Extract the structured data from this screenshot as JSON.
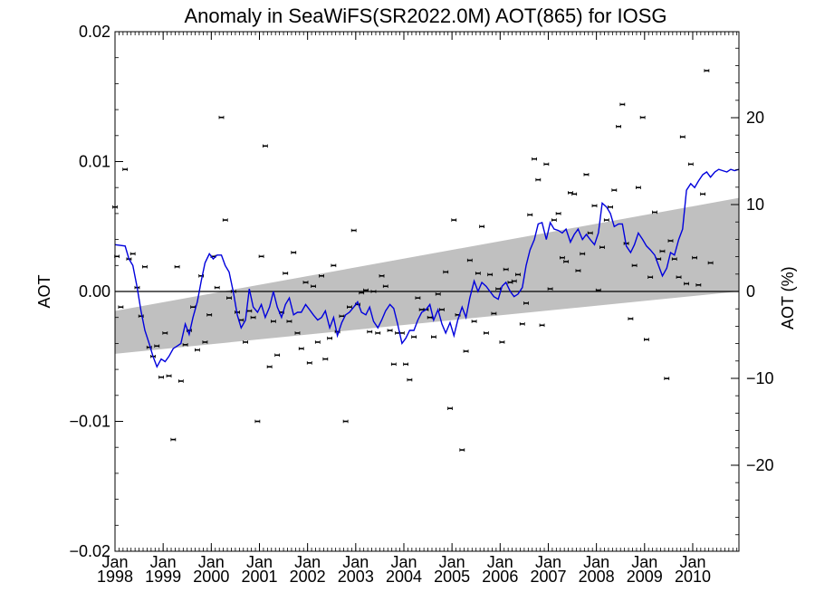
{
  "chart_data": {
    "type": "scatter",
    "title": "Anomaly in SeaWiFS(SR2022.0M) AOT(865) for IOSG",
    "ylabel": "AOT",
    "y2label": "AOT (%)",
    "xlim": [
      1998.0,
      2010.96
    ],
    "ylim": [
      -0.02,
      0.02
    ],
    "y2lim": [
      -29.9,
      29.9
    ],
    "yticks": [
      -0.02,
      -0.01,
      0.0,
      0.01,
      0.02
    ],
    "ytick_labels": [
      "−0.02",
      "−0.01",
      "0.00",
      "0.01",
      "0.02"
    ],
    "y2ticks": [
      -20,
      -10,
      0,
      10,
      20
    ],
    "y2tick_labels": [
      "−20",
      "−10",
      "0",
      "10",
      "20"
    ],
    "xticks": [
      1998,
      1999,
      2000,
      2001,
      2002,
      2003,
      2004,
      2005,
      2006,
      2007,
      2008,
      2009,
      2010
    ],
    "xtick_month": "Jan",
    "xtick_years": [
      "1998",
      "1999",
      "2000",
      "2001",
      "2002",
      "2003",
      "2004",
      "2005",
      "2006",
      "2007",
      "2008",
      "2009",
      "2010"
    ],
    "zero_line": 0.0,
    "trend_band": {
      "x": [
        1998.0,
        2010.96
      ],
      "upper": [
        -0.0015,
        0.0072
      ],
      "lower": [
        -0.0048,
        0.0
      ]
    },
    "colors": {
      "smooth": "#0000dd",
      "band": "#c0c0c0",
      "points": "#000000"
    },
    "points": [
      {
        "x": 1998.0,
        "y": 0.0065
      },
      {
        "x": 1998.04,
        "y": 0.0027
      },
      {
        "x": 1998.12,
        "y": -0.0012
      },
      {
        "x": 1998.21,
        "y": 0.0094
      },
      {
        "x": 1998.29,
        "y": 0.0025
      },
      {
        "x": 1998.37,
        "y": 0.0029
      },
      {
        "x": 1998.46,
        "y": 0.0003
      },
      {
        "x": 1998.54,
        "y": -0.0019
      },
      {
        "x": 1998.62,
        "y": 0.0019
      },
      {
        "x": 1998.71,
        "y": -0.0043
      },
      {
        "x": 1998.79,
        "y": -0.005
      },
      {
        "x": 1998.87,
        "y": -0.0042
      },
      {
        "x": 1998.96,
        "y": -0.0066
      },
      {
        "x": 1999.04,
        "y": -0.0032
      },
      {
        "x": 1999.12,
        "y": -0.0065
      },
      {
        "x": 1999.21,
        "y": -0.0114
      },
      {
        "x": 1999.29,
        "y": 0.0019
      },
      {
        "x": 1999.37,
        "y": -0.0069
      },
      {
        "x": 1999.46,
        "y": -0.0041
      },
      {
        "x": 1999.54,
        "y": -0.003
      },
      {
        "x": 1999.62,
        "y": -0.0012
      },
      {
        "x": 1999.71,
        "y": -0.0045
      },
      {
        "x": 1999.79,
        "y": 0.0012
      },
      {
        "x": 1999.87,
        "y": -0.0039
      },
      {
        "x": 1999.96,
        "y": -0.0018
      },
      {
        "x": 2000.04,
        "y": 0.0027
      },
      {
        "x": 2000.12,
        "y": 0.0003
      },
      {
        "x": 2000.21,
        "y": 0.0134
      },
      {
        "x": 2000.29,
        "y": 0.0055
      },
      {
        "x": 2000.37,
        "y": -0.0005
      },
      {
        "x": 2000.46,
        "y": 0.0
      },
      {
        "x": 2000.54,
        "y": -0.0016
      },
      {
        "x": 2000.62,
        "y": -0.0022
      },
      {
        "x": 2000.71,
        "y": -0.0039
      },
      {
        "x": 2000.79,
        "y": -0.0015
      },
      {
        "x": 2000.87,
        "y": -0.002
      },
      {
        "x": 2000.96,
        "y": -0.01
      },
      {
        "x": 2001.04,
        "y": 0.0027
      },
      {
        "x": 2001.12,
        "y": 0.0112
      },
      {
        "x": 2001.21,
        "y": -0.0058
      },
      {
        "x": 2001.29,
        "y": -0.0023
      },
      {
        "x": 2001.37,
        "y": -0.0049
      },
      {
        "x": 2001.46,
        "y": -0.0016
      },
      {
        "x": 2001.54,
        "y": 0.0014
      },
      {
        "x": 2001.62,
        "y": -0.0023
      },
      {
        "x": 2001.71,
        "y": 0.003
      },
      {
        "x": 2001.79,
        "y": -0.0032
      },
      {
        "x": 2001.87,
        "y": -0.0044
      },
      {
        "x": 2001.96,
        "y": 0.0007
      },
      {
        "x": 2002.04,
        "y": -0.0055
      },
      {
        "x": 2002.12,
        "y": 0.0004
      },
      {
        "x": 2002.21,
        "y": -0.0039
      },
      {
        "x": 2002.29,
        "y": 0.0012
      },
      {
        "x": 2002.37,
        "y": -0.0052
      },
      {
        "x": 2002.46,
        "y": -0.0036
      },
      {
        "x": 2002.54,
        "y": 0.002
      },
      {
        "x": 2002.62,
        "y": -0.0031
      },
      {
        "x": 2002.71,
        "y": -0.0019
      },
      {
        "x": 2002.79,
        "y": -0.01
      },
      {
        "x": 2002.87,
        "y": -0.0012
      },
      {
        "x": 2002.96,
        "y": 0.0047
      },
      {
        "x": 2003.04,
        "y": -0.001
      },
      {
        "x": 2003.12,
        "y": -0.0001
      },
      {
        "x": 2003.21,
        "y": 0.0001
      },
      {
        "x": 2003.29,
        "y": -0.0031
      },
      {
        "x": 2003.37,
        "y": 0.0
      },
      {
        "x": 2003.46,
        "y": -0.0032
      },
      {
        "x": 2003.54,
        "y": 0.0012
      },
      {
        "x": 2003.62,
        "y": 0.0004
      },
      {
        "x": 2003.71,
        "y": -0.003
      },
      {
        "x": 2003.79,
        "y": -0.0056
      },
      {
        "x": 2003.87,
        "y": -0.0032
      },
      {
        "x": 2003.96,
        "y": -0.0032
      },
      {
        "x": 2004.04,
        "y": -0.0056
      },
      {
        "x": 2004.12,
        "y": -0.0068
      },
      {
        "x": 2004.21,
        "y": -0.0035
      },
      {
        "x": 2004.29,
        "y": -0.0005
      },
      {
        "x": 2004.37,
        "y": -0.0014
      },
      {
        "x": 2004.46,
        "y": -0.0014
      },
      {
        "x": 2004.54,
        "y": -0.002
      },
      {
        "x": 2004.62,
        "y": -0.0035
      },
      {
        "x": 2004.71,
        "y": -0.0002
      },
      {
        "x": 2004.79,
        "y": -0.0014
      },
      {
        "x": 2004.87,
        "y": 0.0015
      },
      {
        "x": 2004.96,
        "y": -0.009
      },
      {
        "x": 2005.04,
        "y": 0.0055
      },
      {
        "x": 2005.12,
        "y": -0.0018
      },
      {
        "x": 2005.21,
        "y": -0.0122
      },
      {
        "x": 2005.29,
        "y": -0.0046
      },
      {
        "x": 2005.37,
        "y": 0.0024
      },
      {
        "x": 2005.46,
        "y": -0.0023
      },
      {
        "x": 2005.54,
        "y": 0.0014
      },
      {
        "x": 2005.62,
        "y": 0.005
      },
      {
        "x": 2005.71,
        "y": -0.0032
      },
      {
        "x": 2005.79,
        "y": 0.0013
      },
      {
        "x": 2005.87,
        "y": -0.0017
      },
      {
        "x": 2005.96,
        "y": 0.0002
      },
      {
        "x": 2006.04,
        "y": -0.0039
      },
      {
        "x": 2006.12,
        "y": 0.0017
      },
      {
        "x": 2006.21,
        "y": 0.0007
      },
      {
        "x": 2006.29,
        "y": 0.0008
      },
      {
        "x": 2006.37,
        "y": 0.0013
      },
      {
        "x": 2006.46,
        "y": -0.0025
      },
      {
        "x": 2006.54,
        "y": -0.0009
      },
      {
        "x": 2006.62,
        "y": 0.0059
      },
      {
        "x": 2006.71,
        "y": 0.0102
      },
      {
        "x": 2006.79,
        "y": 0.0086
      },
      {
        "x": 2006.87,
        "y": -0.0026
      },
      {
        "x": 2006.96,
        "y": 0.0098
      },
      {
        "x": 2007.04,
        "y": 0.0002
      },
      {
        "x": 2007.12,
        "y": 0.0055
      },
      {
        "x": 2007.21,
        "y": 0.006
      },
      {
        "x": 2007.29,
        "y": 0.0026
      },
      {
        "x": 2007.37,
        "y": 0.0023
      },
      {
        "x": 2007.46,
        "y": 0.0076
      },
      {
        "x": 2007.54,
        "y": 0.0075
      },
      {
        "x": 2007.62,
        "y": 0.0016
      },
      {
        "x": 2007.71,
        "y": 0.0029
      },
      {
        "x": 2007.79,
        "y": 0.009
      },
      {
        "x": 2007.87,
        "y": 0.0045
      },
      {
        "x": 2007.96,
        "y": 0.0066
      },
      {
        "x": 2008.04,
        "y": 0.0001
      },
      {
        "x": 2008.12,
        "y": 0.0034
      },
      {
        "x": 2008.21,
        "y": 0.0055
      },
      {
        "x": 2008.29,
        "y": 0.0065
      },
      {
        "x": 2008.37,
        "y": 0.0078
      },
      {
        "x": 2008.46,
        "y": 0.0127
      },
      {
        "x": 2008.54,
        "y": 0.0144
      },
      {
        "x": 2008.62,
        "y": 0.0037
      },
      {
        "x": 2008.71,
        "y": -0.0021
      },
      {
        "x": 2008.79,
        "y": 0.002
      },
      {
        "x": 2008.87,
        "y": 0.008
      },
      {
        "x": 2008.96,
        "y": 0.0134
      },
      {
        "x": 2009.04,
        "y": -0.0037
      },
      {
        "x": 2009.12,
        "y": 0.0011
      },
      {
        "x": 2009.21,
        "y": 0.0061
      },
      {
        "x": 2009.29,
        "y": 0.0025
      },
      {
        "x": 2009.37,
        "y": 0.0031
      },
      {
        "x": 2009.46,
        "y": -0.0067
      },
      {
        "x": 2009.54,
        "y": 0.0039
      },
      {
        "x": 2009.62,
        "y": 0.0025
      },
      {
        "x": 2009.71,
        "y": 0.0011
      },
      {
        "x": 2009.79,
        "y": 0.0119
      },
      {
        "x": 2009.87,
        "y": 0.0006
      },
      {
        "x": 2009.96,
        "y": 0.0098
      },
      {
        "x": 2010.04,
        "y": 0.0026
      },
      {
        "x": 2010.12,
        "y": 0.0005
      },
      {
        "x": 2010.21,
        "y": 0.0075
      },
      {
        "x": 2010.29,
        "y": 0.017
      },
      {
        "x": 2010.37,
        "y": 0.0022
      }
    ],
    "smooth": {
      "x": [
        1998.0,
        1998.21,
        1998.29,
        1998.37,
        1998.46,
        1998.54,
        1998.62,
        1998.71,
        1998.79,
        1998.87,
        1998.96,
        1999.04,
        1999.12,
        1999.21,
        1999.29,
        1999.37,
        1999.46,
        1999.54,
        1999.62,
        1999.71,
        1999.79,
        1999.87,
        1999.96,
        2000.04,
        2000.12,
        2000.21,
        2000.29,
        2000.37,
        2000.46,
        2000.54,
        2000.62,
        2000.71,
        2000.79,
        2000.87,
        2000.96,
        2001.04,
        2001.12,
        2001.21,
        2001.29,
        2001.37,
        2001.46,
        2001.54,
        2001.62,
        2001.71,
        2001.79,
        2001.87,
        2001.96,
        2002.04,
        2002.12,
        2002.21,
        2002.29,
        2002.37,
        2002.46,
        2002.54,
        2002.62,
        2002.71,
        2002.79,
        2002.87,
        2002.96,
        2003.04,
        2003.12,
        2003.21,
        2003.29,
        2003.37,
        2003.46,
        2003.54,
        2003.62,
        2003.71,
        2003.79,
        2003.87,
        2003.96,
        2004.04,
        2004.12,
        2004.21,
        2004.29,
        2004.37,
        2004.46,
        2004.54,
        2004.62,
        2004.71,
        2004.79,
        2004.87,
        2004.96,
        2005.04,
        2005.12,
        2005.21,
        2005.29,
        2005.37,
        2005.46,
        2005.54,
        2005.62,
        2005.71,
        2005.79,
        2005.87,
        2005.96,
        2006.04,
        2006.12,
        2006.21,
        2006.29,
        2006.37,
        2006.46,
        2006.54,
        2006.62,
        2006.71,
        2006.79,
        2006.87,
        2006.96,
        2007.04,
        2007.12,
        2007.21,
        2007.29,
        2007.37,
        2007.46,
        2007.54,
        2007.62,
        2007.71,
        2007.79,
        2007.87,
        2007.96,
        2008.04,
        2008.12,
        2008.21,
        2008.29,
        2008.37,
        2008.46,
        2008.54,
        2008.62,
        2008.71,
        2008.79,
        2008.87,
        2008.96,
        2009.04,
        2009.12,
        2009.21,
        2009.29,
        2009.37,
        2009.46,
        2009.54,
        2009.62,
        2009.71,
        2009.79,
        2009.87,
        2009.96,
        2010.04,
        2010.12,
        2010.21,
        2010.29,
        2010.37,
        2010.46,
        2010.54,
        2010.62,
        2010.71,
        2010.79,
        2010.87,
        2010.96
      ],
      "y": [
        0.0036,
        0.0035,
        0.0025,
        0.002,
        0.0003,
        -0.0015,
        -0.003,
        -0.004,
        -0.005,
        -0.0058,
        -0.0052,
        -0.0054,
        -0.005,
        -0.0044,
        -0.0042,
        -0.004,
        -0.0025,
        -0.0033,
        -0.002,
        -0.0008,
        0.0008,
        0.0022,
        0.0029,
        0.0025,
        0.0028,
        0.0028,
        0.002,
        0.0015,
        -0.0001,
        -0.0018,
        -0.0028,
        -0.0022,
        0.0002,
        -0.0012,
        -0.0016,
        -0.001,
        -0.002,
        -0.0012,
        0.0,
        -0.0012,
        -0.002,
        -0.001,
        -0.0005,
        -0.0018,
        -0.0016,
        -0.0016,
        -0.001,
        -0.0014,
        -0.0018,
        -0.0022,
        -0.002,
        -0.0015,
        -0.0028,
        -0.002,
        -0.0034,
        -0.0024,
        -0.0018,
        -0.0016,
        -0.0012,
        -0.0008,
        -0.0016,
        -0.0018,
        -0.0012,
        -0.0023,
        -0.0028,
        -0.0022,
        -0.0015,
        -0.001,
        -0.0013,
        -0.0025,
        -0.004,
        -0.0036,
        -0.003,
        -0.003,
        -0.0022,
        -0.0016,
        -0.0014,
        -0.001,
        -0.0022,
        -0.0014,
        -0.0025,
        -0.0032,
        -0.0024,
        -0.0034,
        -0.0022,
        -0.0012,
        -0.002,
        -0.0005,
        0.0008,
        0.0,
        0.0007,
        0.0004,
        0.0,
        -0.0004,
        -0.0006,
        0.0004,
        0.0007,
        0.0,
        -0.0004,
        -0.0002,
        0.0003,
        0.002,
        0.0032,
        0.004,
        0.0052,
        0.0053,
        0.004,
        0.0053,
        0.0048,
        0.0047,
        0.0045,
        0.0048,
        0.0038,
        0.0044,
        0.0048,
        0.004,
        0.0044,
        0.004,
        0.0036,
        0.0045,
        0.0068,
        0.0065,
        0.006,
        0.005,
        0.0052,
        0.0052,
        0.0035,
        0.003,
        0.0036,
        0.0045,
        0.004,
        0.0035,
        0.0032,
        0.0028,
        0.002,
        0.0012,
        0.0018,
        0.003,
        0.0028,
        0.004,
        0.0048,
        0.0078,
        0.0083,
        0.008,
        0.0085,
        0.009,
        0.0092,
        0.0088,
        0.0092,
        0.0094,
        0.0093,
        0.0092,
        0.0094,
        0.0093,
        0.0094
      ]
    }
  }
}
